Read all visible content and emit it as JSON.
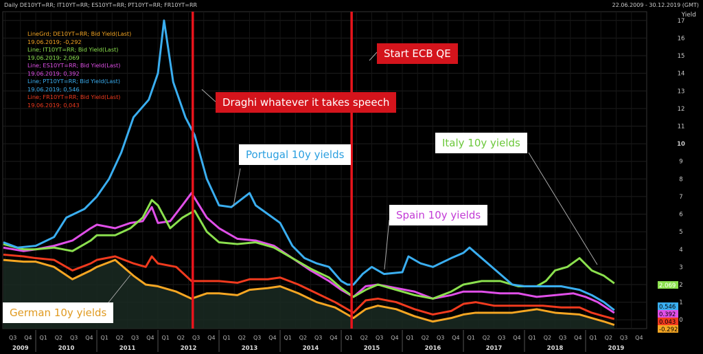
{
  "header": {
    "title": "Daily DE10YT=RR; IT10YT=RR; ES10YT=RR; PT10YT=RR; FR10YT=RR",
    "range": "22.06.2009 - 30.12.2019 (GMT)"
  },
  "legend": [
    {
      "line1": "LineGrd; DE10YT=RR; Bid Yield(Last)",
      "line2": "19.06.2019; -0,292",
      "color": "#f5a623"
    },
    {
      "line1": "Line; IT10YT=RR; Bid Yield(Last)",
      "line2": "19.06.2019; 2,069",
      "color": "#8be04e"
    },
    {
      "line1": "Line; ES10YT=RR; Bid Yield(Last)",
      "line2": "19.06.2019; 0,392",
      "color": "#e04fe8"
    },
    {
      "line1": "Line; PT10YT=RR; Bid Yield(Last)",
      "line2": "19.06.2019; 0,546",
      "color": "#3aaef0"
    },
    {
      "line1": "Line; FR10YT=RR; Bid Yield(Last)",
      "line2": "19.06.2019; 0,043",
      "color": "#f03a1e"
    }
  ],
  "callouts": {
    "draghi": "Draghi whatever it takes speech",
    "ecb": "Start ECB QE",
    "portugal": "Portugal 10y yields",
    "italy": "Italy 10y yields",
    "spain": "Spain 10y yields",
    "german": "German 10y yields"
  },
  "colors": {
    "de": "#f5a623",
    "it": "#8be04e",
    "es": "#e04fe8",
    "pt": "#3aaef0",
    "fr": "#f03a1e",
    "event": "#e8141c"
  },
  "chart_data": {
    "type": "line",
    "ylabel": "Yield",
    "ylim": [
      -0.5,
      17.5
    ],
    "yticks": [
      0,
      1,
      2,
      3,
      4,
      5,
      6,
      7,
      8,
      9,
      10,
      11,
      12,
      13,
      14,
      15,
      16,
      17
    ],
    "xlim": [
      2009.46,
      2020.0
    ],
    "years": [
      "2009",
      "2010",
      "2011",
      "2012",
      "2013",
      "2014",
      "2015",
      "2016",
      "2017",
      "2018",
      "2019"
    ],
    "quarter_labels": [
      "Q1",
      "Q2",
      "Q3",
      "Q4"
    ],
    "events": [
      {
        "name": "Draghi whatever it takes speech",
        "x": 2012.57
      },
      {
        "name": "Start ECB QE",
        "x": 2015.17
      }
    ],
    "last_values": {
      "pt": "0.546",
      "es": "0.392",
      "fr": "0.043",
      "de": "-0.292",
      "it": "2.069"
    },
    "series": [
      {
        "key": "pt",
        "x": [
          2009.47,
          2009.7,
          2010.0,
          2010.3,
          2010.5,
          2010.8,
          2011.0,
          2011.2,
          2011.4,
          2011.6,
          2011.85,
          2012.0,
          2012.1,
          2012.25,
          2012.45,
          2012.6,
          2012.8,
          2013.0,
          2013.2,
          2013.35,
          2013.5,
          2013.6,
          2013.8,
          2014.0,
          2014.2,
          2014.4,
          2014.6,
          2014.8,
          2015.0,
          2015.1,
          2015.2,
          2015.35,
          2015.5,
          2015.7,
          2016.0,
          2016.1,
          2016.3,
          2016.5,
          2016.8,
          2017.0,
          2017.1,
          2017.3,
          2017.6,
          2017.8,
          2018.0,
          2018.3,
          2018.6,
          2018.9,
          2019.1,
          2019.3,
          2019.47
        ],
        "y": [
          4.4,
          4.1,
          4.2,
          4.7,
          5.8,
          6.3,
          7.0,
          8.0,
          9.5,
          11.5,
          12.5,
          14.0,
          17.0,
          13.5,
          11.5,
          10.5,
          8.0,
          6.5,
          6.4,
          6.8,
          7.2,
          6.5,
          6.0,
          5.5,
          4.2,
          3.5,
          3.2,
          3.0,
          2.2,
          2.0,
          2.0,
          2.6,
          3.0,
          2.6,
          2.7,
          3.6,
          3.2,
          3.0,
          3.5,
          3.8,
          4.1,
          3.5,
          2.6,
          2.0,
          1.9,
          1.9,
          1.9,
          1.7,
          1.4,
          1.0,
          0.546
        ]
      },
      {
        "key": "it",
        "x": [
          2009.47,
          2009.8,
          2010.0,
          2010.3,
          2010.6,
          2010.9,
          2011.0,
          2011.3,
          2011.55,
          2011.75,
          2011.9,
          2012.0,
          2012.2,
          2012.4,
          2012.6,
          2012.8,
          2013.0,
          2013.3,
          2013.6,
          2013.9,
          2014.2,
          2014.5,
          2014.8,
          2015.0,
          2015.2,
          2015.4,
          2015.6,
          2015.9,
          2016.2,
          2016.5,
          2016.8,
          2017.0,
          2017.3,
          2017.6,
          2017.9,
          2018.2,
          2018.35,
          2018.5,
          2018.7,
          2018.9,
          2019.1,
          2019.3,
          2019.47
        ],
        "y": [
          4.3,
          4.0,
          4.0,
          4.1,
          3.9,
          4.5,
          4.8,
          4.8,
          5.2,
          5.8,
          6.8,
          6.5,
          5.2,
          5.8,
          6.2,
          5.0,
          4.4,
          4.3,
          4.4,
          4.1,
          3.5,
          2.9,
          2.4,
          1.8,
          1.3,
          1.7,
          2.0,
          1.7,
          1.4,
          1.2,
          1.6,
          2.0,
          2.2,
          2.2,
          1.9,
          1.9,
          2.2,
          2.8,
          3.0,
          3.5,
          2.8,
          2.5,
          2.069
        ]
      },
      {
        "key": "es",
        "x": [
          2009.47,
          2009.8,
          2010.0,
          2010.3,
          2010.6,
          2010.9,
          2011.0,
          2011.3,
          2011.55,
          2011.75,
          2011.9,
          2012.0,
          2012.2,
          2012.4,
          2012.55,
          2012.8,
          2013.0,
          2013.3,
          2013.6,
          2013.9,
          2014.2,
          2014.5,
          2014.8,
          2015.0,
          2015.2,
          2015.4,
          2015.6,
          2015.9,
          2016.2,
          2016.5,
          2016.8,
          2017.0,
          2017.3,
          2017.6,
          2017.9,
          2018.2,
          2018.5,
          2018.8,
          2019.0,
          2019.2,
          2019.47
        ],
        "y": [
          4.1,
          3.9,
          4.0,
          4.2,
          4.5,
          5.2,
          5.4,
          5.2,
          5.5,
          5.6,
          6.4,
          5.5,
          5.6,
          6.5,
          7.2,
          5.8,
          5.2,
          4.6,
          4.5,
          4.2,
          3.5,
          2.8,
          2.2,
          1.7,
          1.3,
          1.9,
          2.0,
          1.8,
          1.6,
          1.2,
          1.4,
          1.6,
          1.6,
          1.5,
          1.5,
          1.3,
          1.4,
          1.5,
          1.3,
          1.0,
          0.392
        ]
      },
      {
        "key": "fr",
        "x": [
          2009.47,
          2009.8,
          2010.0,
          2010.3,
          2010.6,
          2010.9,
          2011.0,
          2011.3,
          2011.6,
          2011.8,
          2011.9,
          2012.0,
          2012.3,
          2012.55,
          2012.8,
          2013.0,
          2013.3,
          2013.5,
          2013.8,
          2014.0,
          2014.3,
          2014.6,
          2014.9,
          2015.1,
          2015.2,
          2015.4,
          2015.6,
          2015.9,
          2016.2,
          2016.5,
          2016.8,
          2017.0,
          2017.2,
          2017.5,
          2017.8,
          2018.0,
          2018.3,
          2018.6,
          2018.9,
          2019.1,
          2019.3,
          2019.47
        ],
        "y": [
          3.7,
          3.6,
          3.5,
          3.4,
          2.8,
          3.2,
          3.4,
          3.6,
          3.2,
          3.0,
          3.6,
          3.2,
          3.0,
          2.2,
          2.2,
          2.2,
          2.1,
          2.3,
          2.3,
          2.4,
          2.0,
          1.5,
          1.0,
          0.6,
          0.4,
          1.1,
          1.2,
          1.0,
          0.6,
          0.3,
          0.5,
          0.9,
          1.0,
          0.8,
          0.8,
          0.8,
          0.8,
          0.7,
          0.7,
          0.4,
          0.2,
          0.043
        ]
      },
      {
        "key": "de",
        "x": [
          2009.47,
          2009.8,
          2010.0,
          2010.3,
          2010.6,
          2010.9,
          2011.0,
          2011.3,
          2011.6,
          2011.8,
          2012.0,
          2012.3,
          2012.55,
          2012.8,
          2013.0,
          2013.3,
          2013.5,
          2013.8,
          2014.0,
          2014.3,
          2014.6,
          2014.9,
          2015.1,
          2015.2,
          2015.4,
          2015.6,
          2015.9,
          2016.2,
          2016.5,
          2016.8,
          2017.0,
          2017.2,
          2017.5,
          2017.8,
          2018.0,
          2018.2,
          2018.5,
          2018.9,
          2019.1,
          2019.3,
          2019.47
        ],
        "y": [
          3.4,
          3.3,
          3.3,
          3.0,
          2.3,
          2.8,
          3.0,
          3.4,
          2.5,
          2.0,
          1.9,
          1.6,
          1.2,
          1.5,
          1.5,
          1.4,
          1.7,
          1.8,
          1.9,
          1.5,
          1.0,
          0.7,
          0.3,
          0.1,
          0.6,
          0.8,
          0.6,
          0.2,
          -0.1,
          0.1,
          0.3,
          0.4,
          0.4,
          0.4,
          0.5,
          0.6,
          0.4,
          0.3,
          0.1,
          -0.1,
          -0.292
        ]
      }
    ]
  }
}
